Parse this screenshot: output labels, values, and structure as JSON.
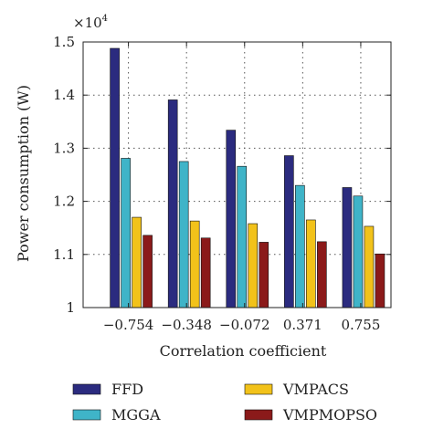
{
  "chart_data": {
    "type": "bar",
    "categories": [
      "−0.754",
      "−0.348",
      "−0.072",
      "0.371",
      "0.755"
    ],
    "series": [
      {
        "name": "FFD",
        "values": [
          1.488,
          1.391,
          1.334,
          1.286,
          1.226
        ],
        "color": "#2b2b7f"
      },
      {
        "name": "MGGA",
        "values": [
          1.281,
          1.275,
          1.266,
          1.23,
          1.21
        ],
        "color": "#3fb4c8"
      },
      {
        "name": "VMPACS",
        "values": [
          1.17,
          1.163,
          1.158,
          1.165,
          1.153
        ],
        "color": "#f2c21a"
      },
      {
        "name": "VMPMOPSO",
        "values": [
          1.136,
          1.131,
          1.123,
          1.124,
          1.101
        ],
        "color": "#8b1a1a"
      }
    ],
    "xlabel": "Correlation coefficient",
    "ylabel": "Power consumption (W)",
    "y_multiplier_label": "×10",
    "y_multiplier_exponent": "4",
    "ylim": [
      1.0,
      1.5
    ],
    "yticks": [
      "1",
      "1.1",
      "1.2",
      "1.3",
      "1.4",
      "1.5"
    ],
    "grid": true,
    "legend_position": "bottom"
  }
}
